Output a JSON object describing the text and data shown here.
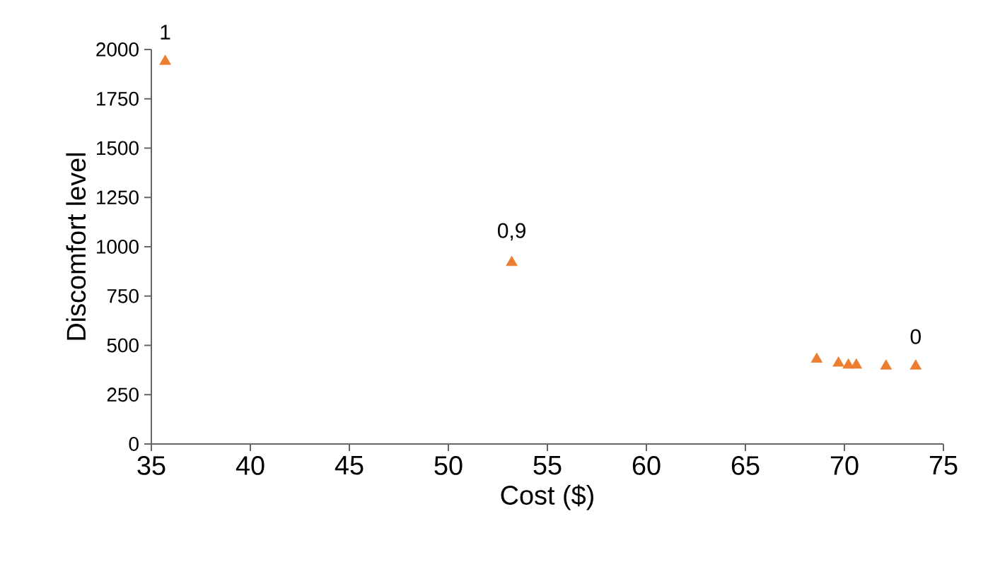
{
  "chart_data": {
    "type": "scatter",
    "xlabel": "Cost ($)",
    "ylabel": "Discomfort level",
    "x": [
      35.7,
      53.2,
      68.6,
      69.7,
      70.2,
      70.6,
      72.1,
      73.6
    ],
    "values": [
      1940,
      920,
      430,
      410,
      400,
      400,
      395,
      395
    ],
    "color": "#ed7d31",
    "marker": "triangle",
    "xlim": [
      35,
      75
    ],
    "xticks": [
      35,
      40,
      45,
      50,
      55,
      60,
      65,
      70,
      75
    ],
    "ylim": [
      0,
      2000
    ],
    "yticks": [
      0,
      250,
      500,
      750,
      1000,
      1250,
      1500,
      1750,
      2000
    ],
    "grid": false,
    "annotations": [
      {
        "text": "1",
        "x": 35.7,
        "y": 1940
      },
      {
        "text": "0,9",
        "x": 53.2,
        "y": 920
      },
      {
        "text": "0",
        "x": 73.6,
        "y": 395
      }
    ]
  }
}
